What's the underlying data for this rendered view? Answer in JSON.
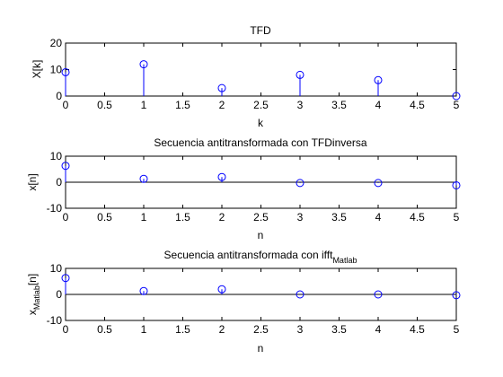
{
  "chart_data": [
    {
      "type": "stem",
      "title": "TFD",
      "xlabel": "k",
      "ylabel": "X[k]",
      "xlim": [
        0,
        5
      ],
      "ylim": [
        0,
        20
      ],
      "xticks": [
        "0",
        "0.5",
        "1",
        "1.5",
        "2",
        "2.5",
        "3",
        "3.5",
        "4",
        "4.5",
        "5"
      ],
      "yticks": [
        "0",
        "10",
        "20"
      ],
      "grid": false,
      "baseline": false,
      "x": [
        0,
        1,
        2,
        3,
        4,
        5
      ],
      "y": [
        9.0,
        12.0,
        3.0,
        8.0,
        6.0,
        0.0
      ]
    },
    {
      "type": "stem",
      "title": "Secuencia antitransformada con TFDinversa",
      "xlabel": "n",
      "ylabel": "x[n]",
      "xlim": [
        0,
        5
      ],
      "ylim": [
        -10,
        10
      ],
      "xticks": [
        "0",
        "0.5",
        "1",
        "1.5",
        "2",
        "2.5",
        "3",
        "3.5",
        "4",
        "4.5",
        "5"
      ],
      "yticks": [
        "-10",
        "0",
        "10"
      ],
      "grid": false,
      "baseline": true,
      "x": [
        0,
        1,
        2,
        3,
        4,
        5
      ],
      "y": [
        6.3,
        1.3,
        2.0,
        -0.3,
        -0.3,
        -1.2
      ]
    },
    {
      "type": "stem",
      "title": "Secuencia antitransformada con ifft",
      "title_sub": "Matlab",
      "xlabel": "n",
      "ylabel": "x",
      "ylabel_sub": "Matlab",
      "ylabel_suffix": "[n]",
      "xlim": [
        0,
        5
      ],
      "ylim": [
        -10,
        10
      ],
      "xticks": [
        "0",
        "0.5",
        "1",
        "1.5",
        "2",
        "2.5",
        "3",
        "3.5",
        "4",
        "4.5",
        "5"
      ],
      "yticks": [
        "-10",
        "0",
        "10"
      ],
      "grid": false,
      "baseline": true,
      "x": [
        0,
        1,
        2,
        3,
        4,
        5
      ],
      "y": [
        6.3,
        1.3,
        2.0,
        0.0,
        0.0,
        -0.3
      ]
    }
  ],
  "colors": {
    "series": "#0000ff",
    "axes": "#000000",
    "baseline": "#000000"
  }
}
